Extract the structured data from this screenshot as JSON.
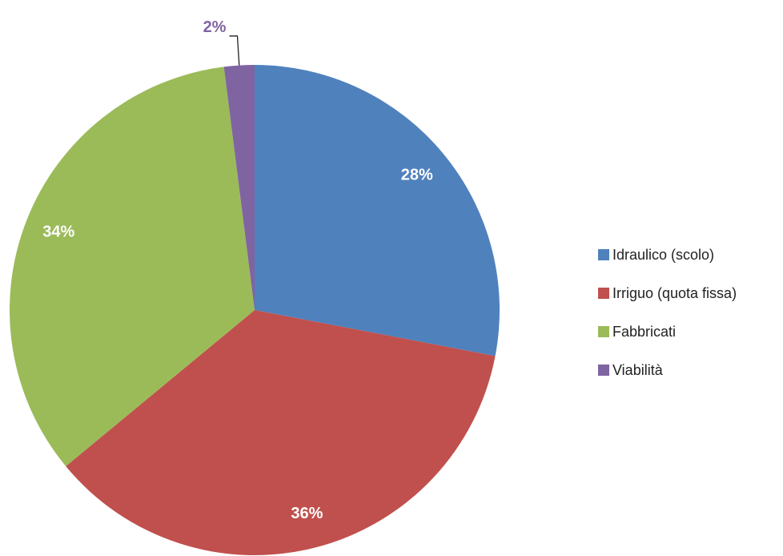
{
  "chart_data": {
    "type": "pie",
    "categories": [
      "Idraulico (scolo)",
      "Irriguo (quota fissa)",
      "Fabbricati",
      "Viabilità"
    ],
    "values": [
      28,
      36,
      34,
      2
    ],
    "value_labels": [
      "28%",
      "36%",
      "34%",
      "2%"
    ],
    "colors": [
      "#4f81bd",
      "#c0504d",
      "#9bbb59",
      "#8064a2"
    ],
    "legend": "right"
  }
}
